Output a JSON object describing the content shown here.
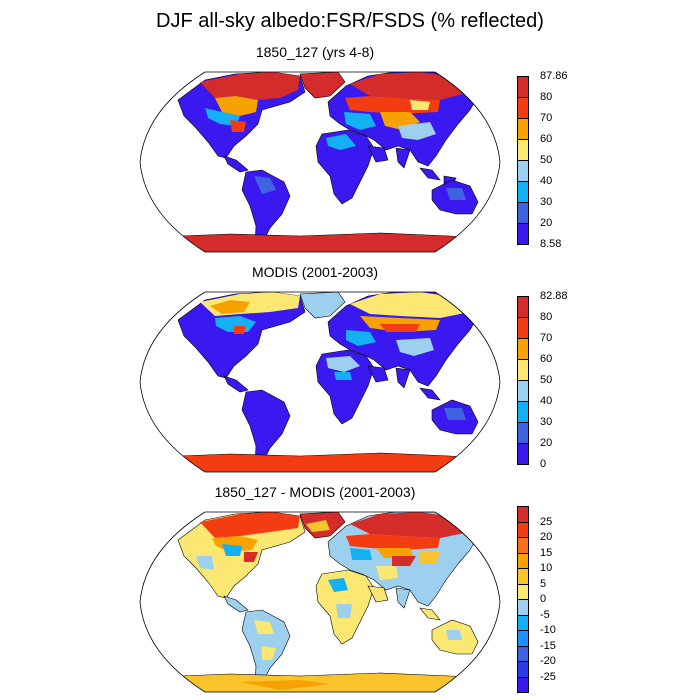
{
  "title": "DJF all-sky albedo:FSR/FSDS (% reflected)",
  "palette": {
    "deep_blue": "#3a19f0",
    "mid_blue": "#3f63e0",
    "blue": "#1e90ff",
    "light_blue": "#13b0f3",
    "sky": "#9dd0ee",
    "yellow": "#fbe872",
    "gold": "#f9c32c",
    "orange": "#f7a200",
    "red_orange": "#f43c12",
    "red": "#d42b2b"
  },
  "panels": [
    {
      "title": "1850_127 (yrs 4-8)",
      "colorbar": {
        "labels": [
          "87.86",
          "80",
          "70",
          "60",
          "50",
          "40",
          "30",
          "20",
          "8.58"
        ],
        "colors": [
          "#d42b2b",
          "#f43c12",
          "#f7a200",
          "#fbe872",
          "#9dd0ee",
          "#13b0f3",
          "#3f63e0",
          "#3a19f0"
        ]
      }
    },
    {
      "title": "MODIS (2001-2003)",
      "colorbar": {
        "labels": [
          "82.88",
          "80",
          "70",
          "60",
          "50",
          "40",
          "30",
          "20",
          "0"
        ],
        "colors": [
          "#d42b2b",
          "#f43c12",
          "#f7a200",
          "#fbe872",
          "#9dd0ee",
          "#13b0f3",
          "#3f63e0",
          "#3a19f0"
        ]
      }
    },
    {
      "title": "1850_127 - MODIS (2001-2003)",
      "colorbar": {
        "labels": [
          "25",
          "20",
          "15",
          "10",
          "5",
          "0",
          "-5",
          "-10",
          "-15",
          "-20",
          "-25"
        ],
        "colors": [
          "#d42b2b",
          "#f43c12",
          "#f7701a",
          "#f7a200",
          "#f9c32c",
          "#fbe872",
          "#9dd0ee",
          "#13b0f3",
          "#1e90ff",
          "#3f63e0",
          "#2b3bea",
          "#3a19f0"
        ]
      }
    }
  ]
}
